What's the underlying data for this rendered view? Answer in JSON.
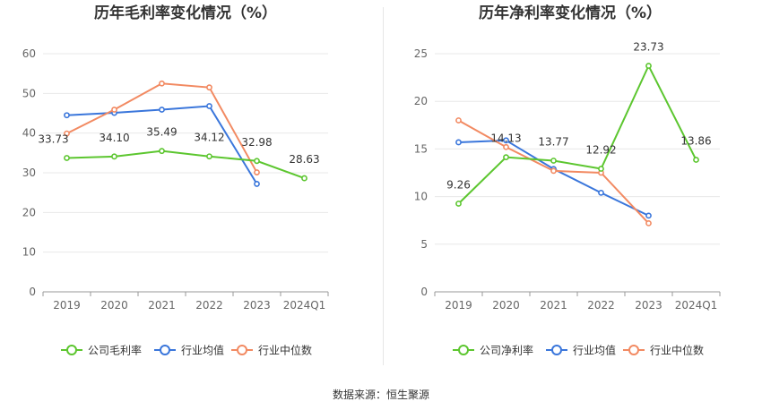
{
  "footer": {
    "source": "数据来源：恒生聚源"
  },
  "chart_data": [
    {
      "type": "line",
      "title": "历年毛利率变化情况（%）",
      "categories": [
        "2019",
        "2020",
        "2021",
        "2022",
        "2023",
        "2024Q1"
      ],
      "ylim": [
        0,
        60
      ],
      "yticks": [
        0,
        10,
        20,
        30,
        40,
        50,
        60
      ],
      "grid": true,
      "legend_position": "bottom",
      "series": [
        {
          "name": "公司毛利率",
          "color": "#5cc62f",
          "labeled": true,
          "values": [
            33.73,
            34.1,
            35.49,
            34.12,
            32.98,
            28.63
          ]
        },
        {
          "name": "行业均值",
          "color": "#3a76db",
          "labeled": false,
          "values": [
            44.5,
            45.1,
            45.9,
            46.8,
            27.2,
            null
          ]
        },
        {
          "name": "行业中位数",
          "color": "#f28a62",
          "labeled": false,
          "values": [
            39.9,
            45.9,
            52.5,
            51.5,
            30.1,
            null
          ]
        }
      ],
      "point_labels": [
        "33.73",
        "34.10",
        "35.49",
        "34.12",
        "32.98",
        "28.63"
      ]
    },
    {
      "type": "line",
      "title": "历年净利率变化情况（%）",
      "categories": [
        "2019",
        "2020",
        "2021",
        "2022",
        "2023",
        "2024Q1"
      ],
      "ylim": [
        0,
        25
      ],
      "yticks": [
        0,
        5,
        10,
        15,
        20,
        25
      ],
      "grid": true,
      "legend_position": "bottom",
      "series": [
        {
          "name": "公司净利率",
          "color": "#5cc62f",
          "labeled": true,
          "values": [
            9.26,
            14.13,
            13.77,
            12.92,
            23.73,
            13.86
          ]
        },
        {
          "name": "行业均值",
          "color": "#3a76db",
          "labeled": false,
          "values": [
            15.7,
            15.9,
            12.9,
            10.4,
            8.0,
            null
          ]
        },
        {
          "name": "行业中位数",
          "color": "#f28a62",
          "labeled": false,
          "values": [
            18.0,
            15.2,
            12.7,
            12.5,
            7.2,
            null
          ]
        }
      ],
      "point_labels": [
        "9.26",
        "14.13",
        "13.77",
        "12.92",
        "23.73",
        "13.86"
      ]
    }
  ]
}
